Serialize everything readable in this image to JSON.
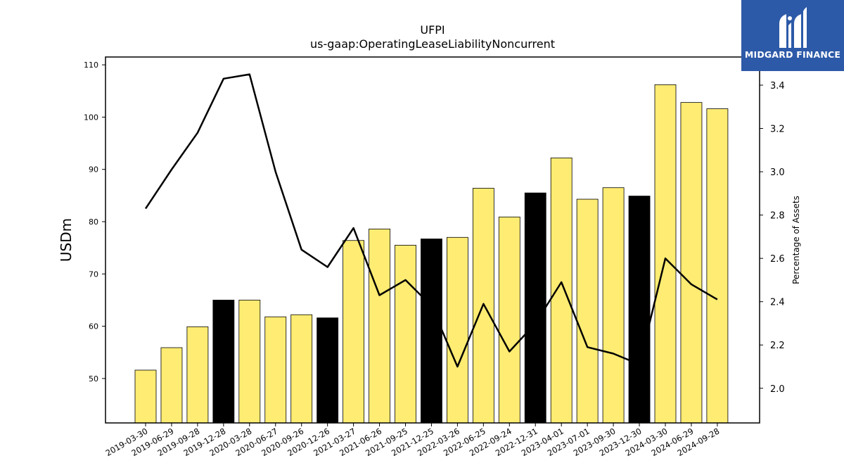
{
  "brand": {
    "name": "MIDGARD FINANCE",
    "icon": "midgard-logo-icon",
    "color": "#2d5aa8"
  },
  "chart_data": {
    "type": "bar",
    "title": "UFPI",
    "subtitle": "us-gaap:OperatingLeaseLiabilityNoncurrent",
    "ylabel": "USDm",
    "y2label": "Percentage of Assets",
    "ylim": [
      41.5,
      111.5
    ],
    "y2lim": [
      1.84,
      3.53
    ],
    "yticks": [
      50,
      60,
      70,
      80,
      90,
      100,
      110
    ],
    "y2ticks": [
      2.0,
      2.2,
      2.4,
      2.6,
      2.8,
      3.0,
      3.2,
      3.4
    ],
    "categories": [
      "2019-03-30",
      "2019-06-29",
      "2019-09-28",
      "2019-12-28",
      "2020-03-28",
      "2020-06-27",
      "2020-09-26",
      "2020-12-26",
      "2021-03-27",
      "2021-06-26",
      "2021-09-25",
      "2021-12-25",
      "2022-03-26",
      "2022-06-25",
      "2022-09-24",
      "2022-12-31",
      "2023-04-01",
      "2023-07-01",
      "2023-09-30",
      "2023-12-30",
      "2024-03-30",
      "2024-06-29",
      "2024-09-28"
    ],
    "series": [
      {
        "type": "bar",
        "values": [
          51.6,
          55.9,
          59.9,
          65.0,
          65.0,
          61.8,
          62.2,
          61.6,
          76.4,
          78.6,
          75.5,
          76.7,
          77.0,
          86.4,
          80.9,
          85.5,
          92.2,
          84.3,
          86.5,
          84.9,
          106.2,
          102.8,
          101.6
        ],
        "highlight": [
          false,
          false,
          false,
          true,
          false,
          false,
          false,
          true,
          false,
          false,
          false,
          true,
          false,
          false,
          false,
          true,
          false,
          false,
          false,
          true,
          false,
          false,
          false
        ],
        "color": "#ffec73",
        "highlight_color": "#000000"
      },
      {
        "type": "line",
        "axis": "secondary",
        "values": [
          2.83,
          3.01,
          3.18,
          3.43,
          3.45,
          3.0,
          2.64,
          2.56,
          2.74,
          2.43,
          2.5,
          2.38,
          2.1,
          2.39,
          2.17,
          2.3,
          2.49,
          2.19,
          2.16,
          2.11,
          2.6,
          2.48,
          2.41
        ],
        "color": "#000000"
      }
    ],
    "grid": false
  }
}
